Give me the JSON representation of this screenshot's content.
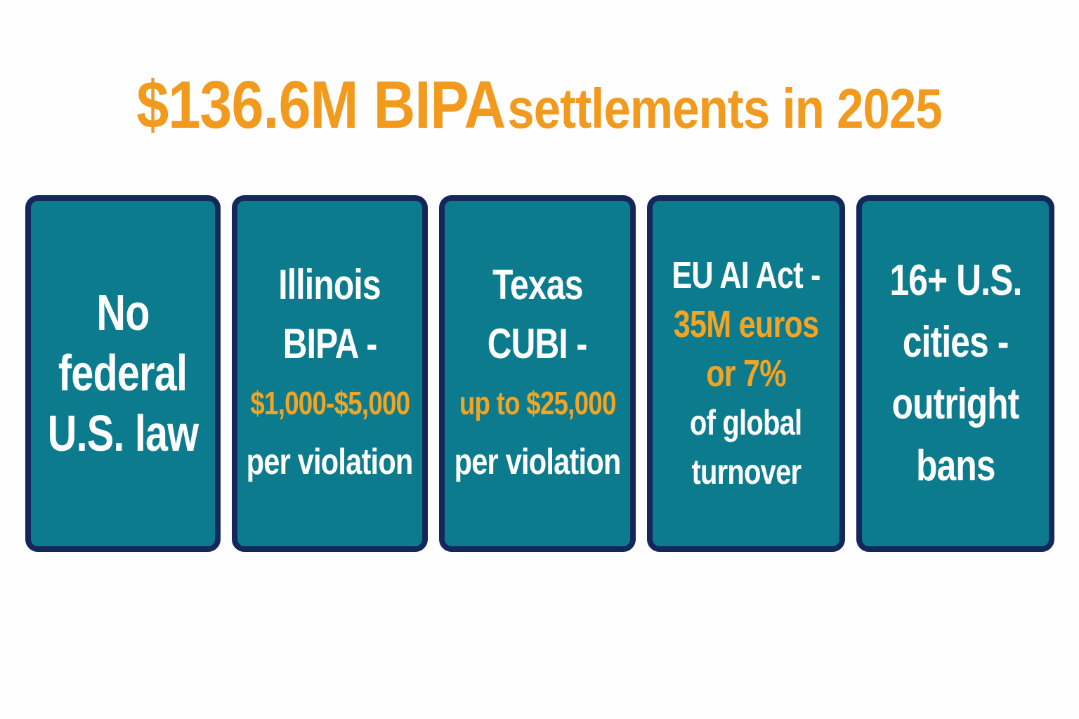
{
  "header": {
    "title": {
      "emphasis": "$136.6M BIPA",
      "rest": "settlements in 2025"
    }
  },
  "cards": [
    {
      "lines": [
        {
          "text": "No"
        },
        {
          "text": "federal"
        },
        {
          "text": "U.S. law"
        }
      ]
    },
    {
      "lines": [
        {
          "text": "Illinois"
        },
        {
          "text": "BIPA -"
        },
        {
          "text": "$1,000-$5,000",
          "accent": true
        },
        {
          "text": "per violation"
        }
      ]
    },
    {
      "lines": [
        {
          "text": "Texas"
        },
        {
          "text": "CUBI -"
        },
        {
          "text": "up to $25,000",
          "accent": true
        },
        {
          "text": "per violation"
        }
      ]
    },
    {
      "lines": [
        {
          "text": "EU AI Act -"
        },
        {
          "text": "35M euros",
          "accent": true
        },
        {
          "text": "or 7%",
          "accent": true
        },
        {
          "text": "of global"
        },
        {
          "text": "turnover"
        }
      ]
    },
    {
      "lines": [
        {
          "text": "16+ U.S."
        },
        {
          "text": "cities -"
        },
        {
          "text": "outright"
        },
        {
          "text": "bans"
        }
      ]
    }
  ]
}
